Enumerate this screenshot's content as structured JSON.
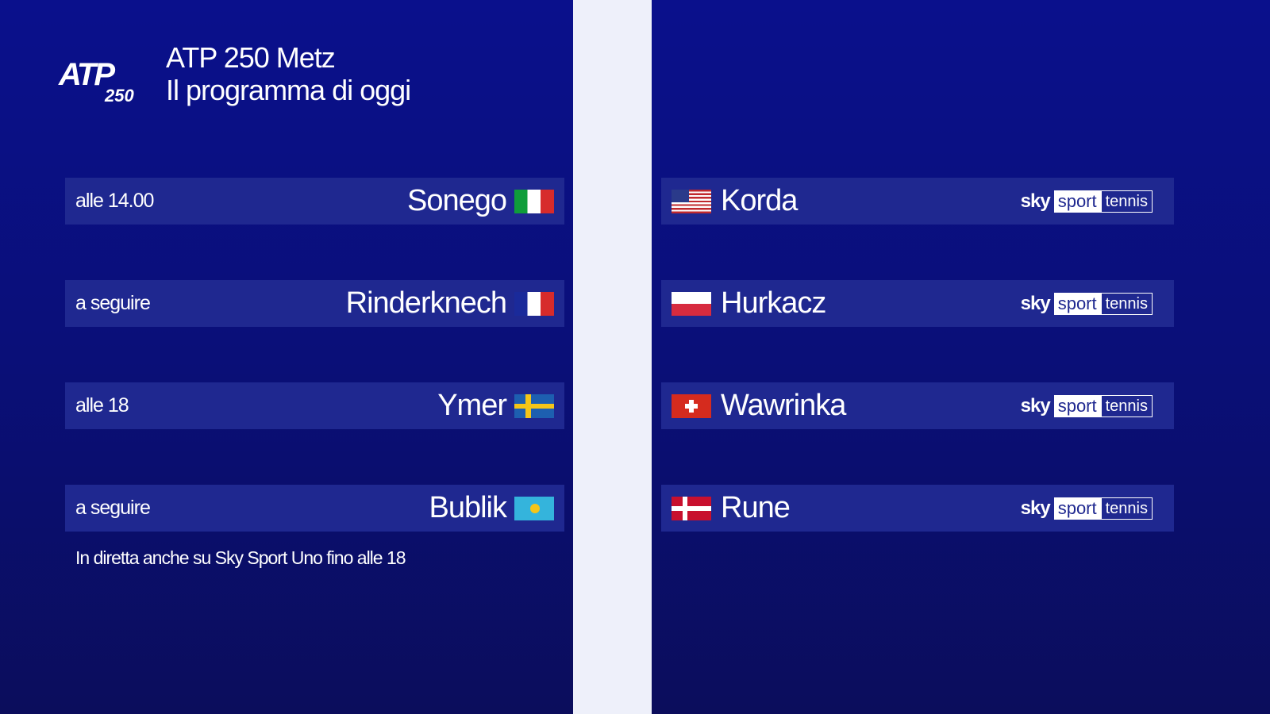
{
  "header": {
    "logo_text": "ATP",
    "logo_number": "250",
    "title_line1": "ATP 250 Metz",
    "title_line2": "Il programma di oggi"
  },
  "matches": [
    {
      "time": "alle 14.00",
      "player1": "Sonego",
      "flag1": "italy",
      "player2": "Korda",
      "flag2": "usa"
    },
    {
      "time": "a seguire",
      "player1": "Rinderknech",
      "flag1": "france",
      "player2": "Hurkacz",
      "flag2": "poland"
    },
    {
      "time": "alle 18",
      "player1": "Ymer",
      "flag1": "sweden",
      "player2": "Wawrinka",
      "flag2": "switzerland"
    },
    {
      "time": "a seguire",
      "player1": "Bublik",
      "flag1": "kazakhstan",
      "player2": "Rune",
      "flag2": "denmark"
    }
  ],
  "channel": {
    "sky": "sky",
    "sport": "sport",
    "tennis": "tennis"
  },
  "note": "In diretta anche su Sky Sport Uno fino alle 18"
}
